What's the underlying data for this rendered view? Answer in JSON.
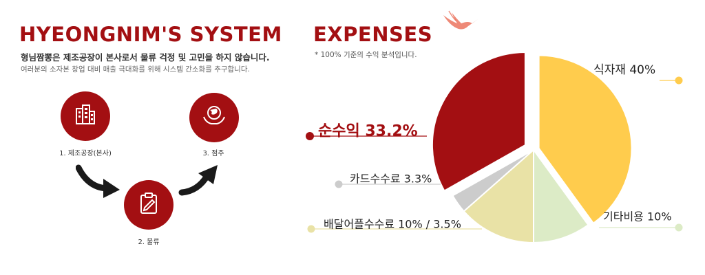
{
  "system": {
    "title": "HYEONGNIM'S SYSTEM",
    "desc_main": "형님짬뽕은 제조공장이 본사로서 물류 걱정 및 고민을 하지 않습니다.",
    "desc_sub": "여러분의 소자본 창업 대비 매출 극대화를 위해 시스템 간소화를 추구합니다.",
    "steps": [
      {
        "label": "1. 제조공장(본사)",
        "icon": "factory-building-icon"
      },
      {
        "label": "2. 물류",
        "icon": "clipboard-icon"
      },
      {
        "label": "3. 점주",
        "icon": "globe-hands-icon"
      }
    ],
    "arrow_icon": "curved-arrow-icon"
  },
  "expenses": {
    "title": "EXPENSES",
    "note": "* 100% 기준의 수익 분석입니다.",
    "bird_icon": "crane-bird-icon"
  },
  "chart_data": {
    "type": "pie",
    "title": "",
    "slices": [
      {
        "label": "식자재 40%",
        "value": 40,
        "color": "#ffcc4d"
      },
      {
        "label": "기타비용 10%",
        "value": 10,
        "color": "#dcebc6"
      },
      {
        "label": "배달어플수수료 10% / 3.5%",
        "value": 13.5,
        "color": "#e9e2a6"
      },
      {
        "label": "카드수수료 3.3%",
        "value": 3.3,
        "color": "#cccccc"
      },
      {
        "label": "순수익 33.2%",
        "value": 33.2,
        "color": "#a30f12"
      }
    ],
    "legend": "callout-labels",
    "colors": {
      "accent": "#a30f12"
    }
  }
}
